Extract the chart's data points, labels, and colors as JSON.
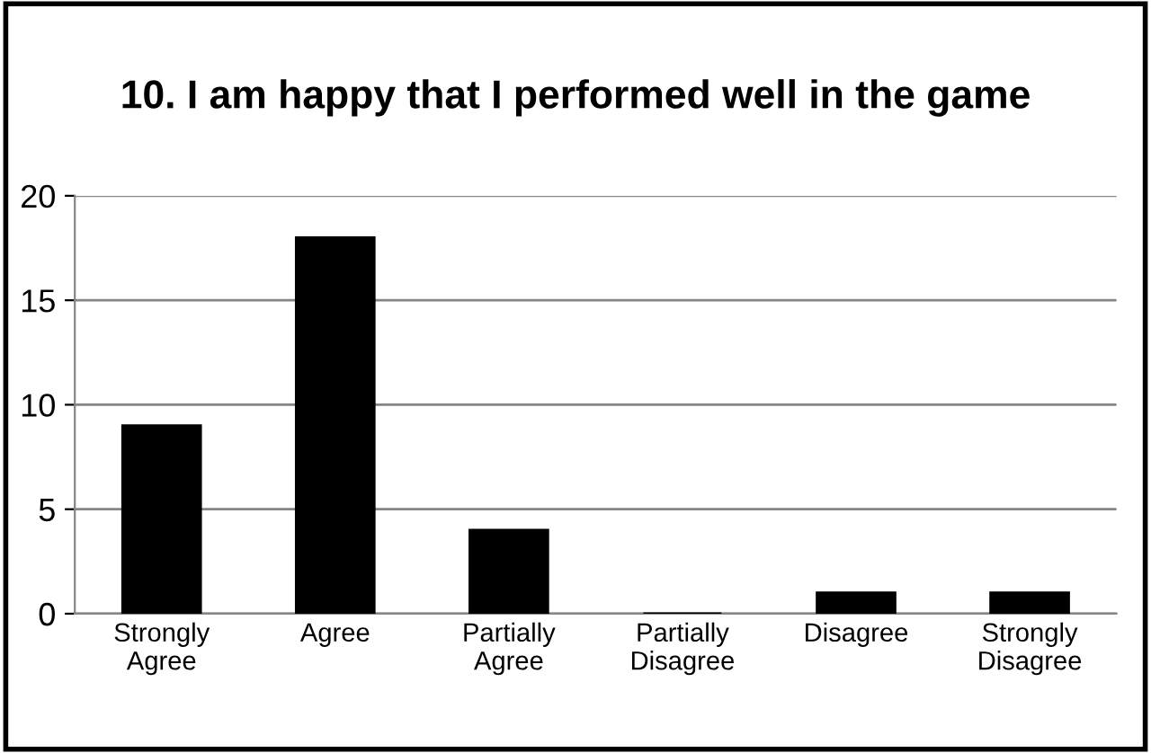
{
  "chart_data": {
    "type": "bar",
    "title": "10. I am happy that I performed well in the game",
    "categories": [
      "Strongly Agree",
      "Agree",
      "Partially Agree",
      "Partially Disagree",
      "Disagree",
      "Strongly Disagree"
    ],
    "values": [
      9,
      18,
      4,
      0,
      1,
      1
    ],
    "color": "#000000",
    "ylim": [
      0,
      20
    ],
    "yticks": [
      0,
      5,
      10,
      15,
      20
    ],
    "grid": "y"
  }
}
